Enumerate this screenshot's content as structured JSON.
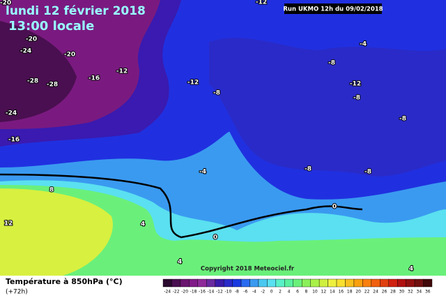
{
  "header": {
    "title": "lundi 12 février 2018",
    "time": "13:00 locale",
    "run": "Run UKMO 12h du 09/02/2018"
  },
  "map": {
    "copyright": "Copyright 2018 Meteociel.fr",
    "contour_labels": [
      -20,
      -24,
      -20,
      -20,
      -28,
      -28,
      -16,
      -12,
      -24,
      -16,
      -12,
      -8,
      -12,
      -8,
      -4,
      -12,
      -8,
      -8,
      -8,
      -8,
      -4,
      8,
      12,
      4,
      0,
      0,
      4,
      4
    ]
  },
  "legend": {
    "title": "Température à 850hPa (°C)",
    "subtitle": "(+72h)",
    "scale": [
      {
        "value": -24,
        "color": "#2a0a2e"
      },
      {
        "value": -22,
        "color": "#4a0f50"
      },
      {
        "value": -20,
        "color": "#6a1470"
      },
      {
        "value": -18,
        "color": "#801a88"
      },
      {
        "value": -16,
        "color": "#8e2a9a"
      },
      {
        "value": -14,
        "color": "#6a2aa0"
      },
      {
        "value": -12,
        "color": "#3a1aa8"
      },
      {
        "value": -10,
        "color": "#2a2ac8"
      },
      {
        "value": -8,
        "color": "#1a3ae0"
      },
      {
        "value": -6,
        "color": "#2a6af0"
      },
      {
        "value": -4,
        "color": "#3a9af0"
      },
      {
        "value": -2,
        "color": "#4ac8f0"
      },
      {
        "value": 0,
        "color": "#5ae0f0"
      },
      {
        "value": 2,
        "color": "#5af0c8"
      },
      {
        "value": 4,
        "color": "#5af0a0"
      },
      {
        "value": 6,
        "color": "#6af07a"
      },
      {
        "value": 8,
        "color": "#8af05a"
      },
      {
        "value": 10,
        "color": "#aaf04a"
      },
      {
        "value": 12,
        "color": "#cff040"
      },
      {
        "value": 14,
        "color": "#eef040"
      },
      {
        "value": 16,
        "color": "#f8e030"
      },
      {
        "value": 18,
        "color": "#f8c020"
      },
      {
        "value": 20,
        "color": "#f8a010"
      },
      {
        "value": 22,
        "color": "#f88010"
      },
      {
        "value": 24,
        "color": "#f06010"
      },
      {
        "value": 26,
        "color": "#e04010"
      },
      {
        "value": 28,
        "color": "#d02010"
      },
      {
        "value": 30,
        "color": "#b01010"
      },
      {
        "value": 32,
        "color": "#901010"
      },
      {
        "value": 34,
        "color": "#701010"
      },
      {
        "value": 36,
        "color": "#400808"
      }
    ]
  }
}
